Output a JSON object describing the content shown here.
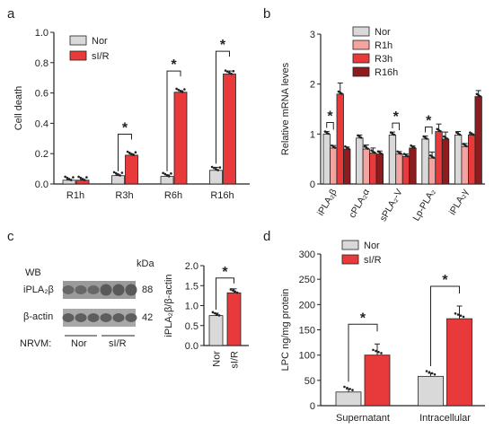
{
  "colors": {
    "nor": "#d9d9d9",
    "sir": "#e8393b",
    "r1h": "#f3a3a0",
    "r3h": "#e8393b",
    "r16h": "#8e1b1e",
    "axis": "#222222",
    "blot_dark": "#555555"
  },
  "chart_data": [
    {
      "panel": "a",
      "type": "bar",
      "ylabel": "Cell death",
      "ylim": [
        0,
        1.0
      ],
      "yticks": [
        "0.0",
        "0.2",
        "0.4",
        "0.6",
        "0.8",
        "1.0"
      ],
      "categories": [
        "R1h",
        "R3h",
        "R6h",
        "R16h"
      ],
      "series": [
        {
          "name": "Nor",
          "values": [
            0.025,
            0.055,
            0.05,
            0.09
          ],
          "errors": [
            0.005,
            0.005,
            0.01,
            0.02
          ]
        },
        {
          "name": "sI/R",
          "values": [
            0.025,
            0.19,
            0.605,
            0.725
          ],
          "errors": [
            0.005,
            0.008,
            0.01,
            0.02
          ]
        }
      ],
      "significance": [
        "",
        "*",
        "*",
        "*"
      ],
      "legend": "top-left"
    },
    {
      "panel": "b",
      "type": "bar",
      "ylabel": "Relative mRNA leves",
      "ylim": [
        0,
        3
      ],
      "yticks": [
        "0",
        "1",
        "2",
        "3"
      ],
      "categories": [
        "iPLA₂β",
        "cPLA₂α",
        "sPLA₂-V",
        "Lp-PLA₂",
        "iPLA₂γ"
      ],
      "series": [
        {
          "name": "Nor",
          "values": [
            1.0,
            0.92,
            0.98,
            0.9,
            0.98
          ],
          "errors": [
            0.05,
            0.06,
            0.06,
            0.06,
            0.07
          ]
        },
        {
          "name": "R1h",
          "values": [
            0.72,
            0.7,
            0.6,
            0.52,
            0.75
          ],
          "errors": [
            0.05,
            0.08,
            0.05,
            0.12,
            0.06
          ]
        },
        {
          "name": "R3h",
          "values": [
            1.8,
            0.62,
            0.55,
            1.05,
            0.98
          ],
          "errors": [
            0.22,
            0.1,
            0.05,
            0.15,
            0.02
          ]
        },
        {
          "name": "R16h",
          "values": [
            0.7,
            0.6,
            0.72,
            0.9,
            1.75
          ],
          "errors": [
            0.04,
            0.06,
            0.04,
            0.14,
            0.12
          ]
        }
      ],
      "significance_pairs": [
        {
          "group": 0,
          "label": "*"
        },
        {
          "group": 2,
          "label": "*"
        },
        {
          "group": 3,
          "label": "*"
        }
      ],
      "legend": "top-right"
    },
    {
      "panel": "c",
      "type": "bar",
      "ylabel": "iPLA₂β/β-actin",
      "ylim": [
        0,
        2.0
      ],
      "yticks": [
        "0.0",
        "0.5",
        "1.0",
        "1.5",
        "2.0"
      ],
      "categories": [
        "Nor",
        "sI/R"
      ],
      "values": [
        0.75,
        1.32
      ],
      "errors": [
        0.06,
        0.1
      ],
      "significance": "*"
    },
    {
      "panel": "d",
      "type": "bar",
      "ylabel": "LPC ng/mg protein",
      "ylim": [
        0,
        300
      ],
      "yticks": [
        "0",
        "50",
        "100",
        "150",
        "200",
        "250",
        "300"
      ],
      "categories": [
        "Supernatant",
        "Intracellular"
      ],
      "series": [
        {
          "name": "Nor",
          "values": [
            27,
            58
          ],
          "errors": [
            6,
            6
          ]
        },
        {
          "name": "sI/R",
          "values": [
            100,
            172
          ],
          "errors": [
            22,
            25
          ]
        }
      ],
      "significance": [
        "*",
        "*"
      ],
      "legend": "top-left"
    }
  ],
  "labels": {
    "a": "a",
    "b": "b",
    "c": "c",
    "d": "d"
  },
  "blot": {
    "wb": "WB",
    "kda": "kDa",
    "rows": [
      "iPLA₂β",
      "β-actin"
    ],
    "kda_values": [
      "88",
      "42"
    ],
    "nrvm": "NRVM:",
    "groups": [
      "Nor",
      "sI/R"
    ]
  }
}
